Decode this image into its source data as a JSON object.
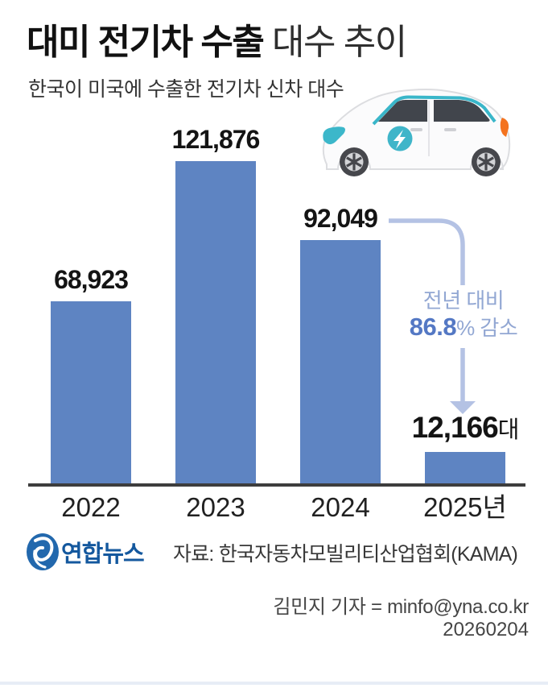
{
  "header": {
    "title_bold": "대미 전기차 수출",
    "title_light": " 대수 추이",
    "subtitle": "한국이 미국에 수출한 전기차 신차 대수"
  },
  "chart_data": {
    "type": "bar",
    "title": "대미 전기차 수출 대수 추이",
    "xlabel": "",
    "ylabel": "",
    "categories": [
      "2022",
      "2023",
      "2024",
      "2025년"
    ],
    "values": [
      68923,
      121876,
      92049,
      12166
    ],
    "value_labels": [
      "68,923",
      "121,876",
      "92,049",
      "12,166"
    ],
    "last_value_suffix": "대",
    "ylim": [
      0,
      130000
    ],
    "grid": false,
    "legend": false,
    "bar_color": "#5e84c2",
    "axis_color": "#3d3d3d"
  },
  "annotation": {
    "line1": "전년 대비",
    "pct_bold": "86.8",
    "line2_rest": "% 감소",
    "arrow_color": "#b4c2e4",
    "text_color": "#92a7d3",
    "bold_color": "#5478c4"
  },
  "illustration": {
    "car_icon": "ev-car-side-view",
    "badge_icon": "lightning-bolt-icon",
    "body_color": "#fbfbfc",
    "accent_color": "#3fb5c9",
    "taillight_color": "#f4731f",
    "window_color": "#41454c"
  },
  "footer": {
    "logo_icon": "yonhap-news-logo",
    "logo_text": "연합뉴스",
    "logo_color": "#2268ad",
    "source": "자료: 한국자동차모빌리티산업협회(KAMA)",
    "byline": "김민지 기자 = minfo@yna.co.kr",
    "date": "20260204"
  }
}
